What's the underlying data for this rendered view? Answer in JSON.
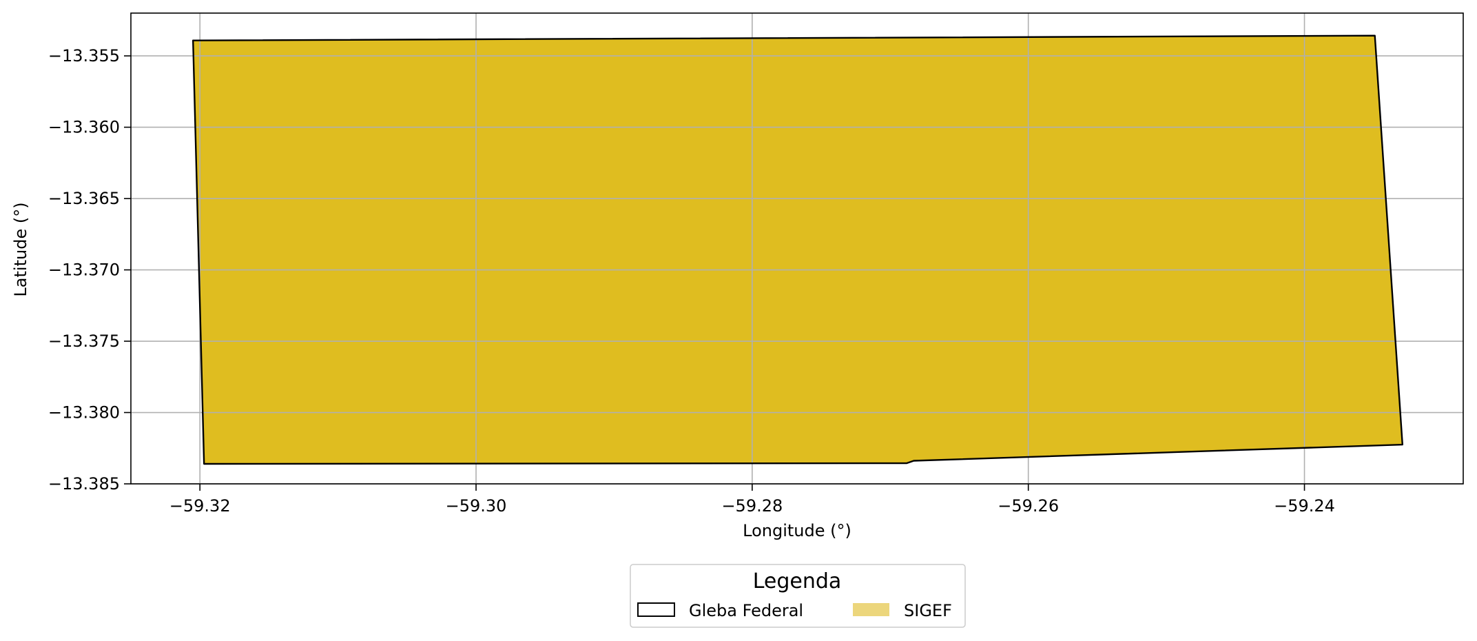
{
  "chart_data": {
    "type": "map",
    "xlabel": "Longitude (°)",
    "ylabel": "Latitude (°)",
    "xlim": [
      -59.325,
      -59.2285
    ],
    "ylim": [
      -13.385,
      -13.352
    ],
    "xticks": [
      -59.32,
      -59.3,
      -59.28,
      -59.26,
      -59.24
    ],
    "xtick_labels": [
      "−59.32",
      "−59.30",
      "−59.28",
      "−59.26",
      "−59.24"
    ],
    "yticks": [
      -13.355,
      -13.36,
      -13.365,
      -13.37,
      -13.375,
      -13.38,
      -13.385
    ],
    "ytick_labels": [
      "−13.355",
      "−13.360",
      "−13.365",
      "−13.370",
      "−13.375",
      "−13.380",
      "−13.385"
    ],
    "grid": true,
    "layers": [
      {
        "name": "Gleba Federal",
        "style": "outline",
        "edge_color": "#000000",
        "fill_color": "none",
        "polygon": [
          [
            -59.3205,
            -13.35392
          ],
          [
            -59.2349,
            -13.35358
          ],
          [
            -59.2329,
            -13.38225
          ],
          [
            -59.2683,
            -13.38338
          ],
          [
            -59.2688,
            -13.38355
          ],
          [
            -59.3197,
            -13.3836
          ]
        ]
      },
      {
        "name": "SIGEF",
        "style": "fill",
        "fill_color": "#dfbd20",
        "legend_color": "#ecd67c",
        "polygon": [
          [
            -59.3205,
            -13.35392
          ],
          [
            -59.2349,
            -13.35358
          ],
          [
            -59.2329,
            -13.38225
          ],
          [
            -59.2683,
            -13.38338
          ],
          [
            -59.2688,
            -13.38355
          ],
          [
            -59.3197,
            -13.3836
          ]
        ]
      }
    ],
    "legend": {
      "title": "Legenda",
      "placement": "bottom-center",
      "entries": [
        {
          "label": "Gleba Federal",
          "kind": "outline"
        },
        {
          "label": "SIGEF",
          "kind": "fill"
        }
      ]
    }
  }
}
